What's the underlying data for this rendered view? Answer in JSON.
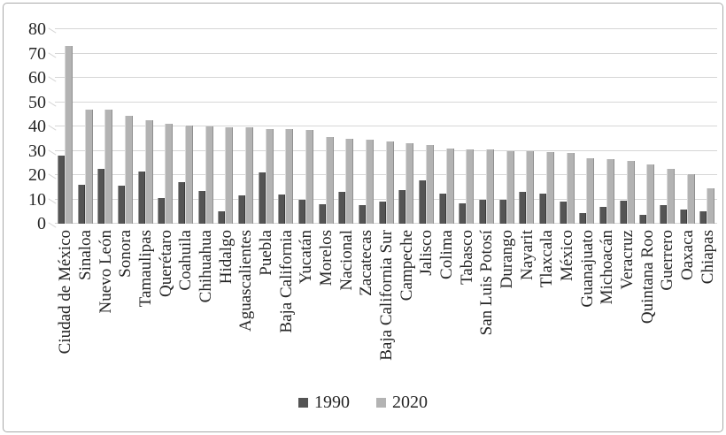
{
  "colors": {
    "bar_dark": "#545454",
    "bar_light": "#b3b3b3",
    "gridline": "#d6d6d6",
    "text": "#262626",
    "frame_border": "#a9a9a9"
  },
  "chart_data": {
    "type": "bar",
    "title": "",
    "xlabel": "",
    "ylabel": "",
    "ylim": [
      0,
      80
    ],
    "yticks": [
      0,
      10,
      20,
      30,
      40,
      50,
      60,
      70,
      80
    ],
    "grid": true,
    "legend_position": "bottom",
    "categories": [
      "Ciudad de México",
      "Sinaloa",
      "Nuevo León",
      "Sonora",
      "Tamaulipas",
      "Querétaro",
      "Coahuila",
      "Chihuahua",
      "Hidalgo",
      "Aguascalientes",
      "Puebla",
      "Baja California",
      "Yucatán",
      "Morelos",
      "Nacional",
      "Zacatecas",
      "Baja California Sur",
      "Campeche",
      "Jalisco",
      "Colima",
      "Tabasco",
      "San Luis Potosí",
      "Durango",
      "Nayarit",
      "Tlaxcala",
      "México",
      "Guanajuato",
      "Michoacán",
      "Veracruz",
      "Quintana Roo",
      "Guerrero",
      "Oaxaca",
      "Chiapas"
    ],
    "series": [
      {
        "name": "1990",
        "color_key": "bar_dark",
        "values": [
          28,
          16,
          22.5,
          15.5,
          21.5,
          10.5,
          17,
          13.5,
          5,
          11.5,
          21,
          12,
          10,
          8,
          13,
          7.5,
          9,
          14,
          18,
          12.5,
          8.5,
          10,
          10,
          13,
          12.5,
          9,
          4.5,
          7,
          9.5,
          3.5,
          7.5,
          6,
          5
        ]
      },
      {
        "name": "2020",
        "color_key": "bar_light",
        "values": [
          73,
          47,
          47,
          44.5,
          42.5,
          41,
          40.5,
          40,
          39.5,
          39.5,
          39,
          39,
          38.5,
          35.5,
          35,
          34.5,
          34,
          33,
          32.5,
          31,
          30.5,
          30.5,
          30,
          30,
          29.5,
          29,
          27,
          26.5,
          26,
          24.5,
          22.5,
          20.5,
          14.5
        ]
      }
    ]
  }
}
